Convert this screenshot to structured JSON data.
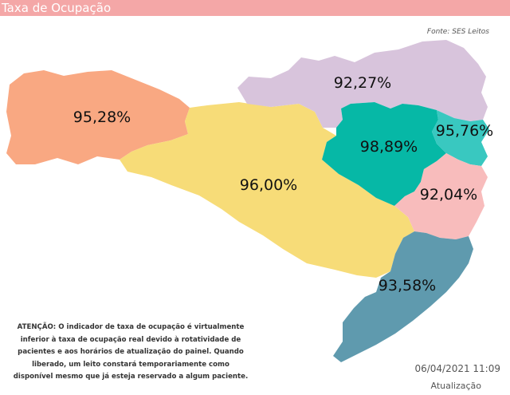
{
  "header": {
    "title": "Taxa de Ocupação"
  },
  "source": "Fonte: SES Leitos",
  "colors": {
    "header": "#f4a7a7",
    "oeste": "#f9a882",
    "meio_oeste_serra": "#f7dc78",
    "norte": "#d8c4dc",
    "vale_itajai": "#06b8a6",
    "foz_itajai": "#39c8c0",
    "grande_florianopolis": "#f8bcbc",
    "sul": "#5f9aae"
  },
  "regions": [
    {
      "id": "oeste",
      "rate": "95,28%"
    },
    {
      "id": "meio_oeste_serra",
      "rate": "96,00%"
    },
    {
      "id": "norte",
      "rate": "92,27%"
    },
    {
      "id": "vale_itajai",
      "rate": "98,89%"
    },
    {
      "id": "foz_itajai",
      "rate": "95,76%"
    },
    {
      "id": "grande_florianopolis",
      "rate": "92,04%"
    },
    {
      "id": "sul",
      "rate": "93,58%"
    }
  ],
  "notice": "ATENÇÃO: O indicador de taxa de ocupação é virtualmente inferior à taxa de ocupação real devido à rotatividade de pacientes e aos horários de atualização do painel.  Quando liberado, um leito constará temporariamente como disponível mesmo que já esteja reservado a algum paciente.",
  "update": {
    "date": "06/04/2021 11:09",
    "label": "Atualização"
  }
}
